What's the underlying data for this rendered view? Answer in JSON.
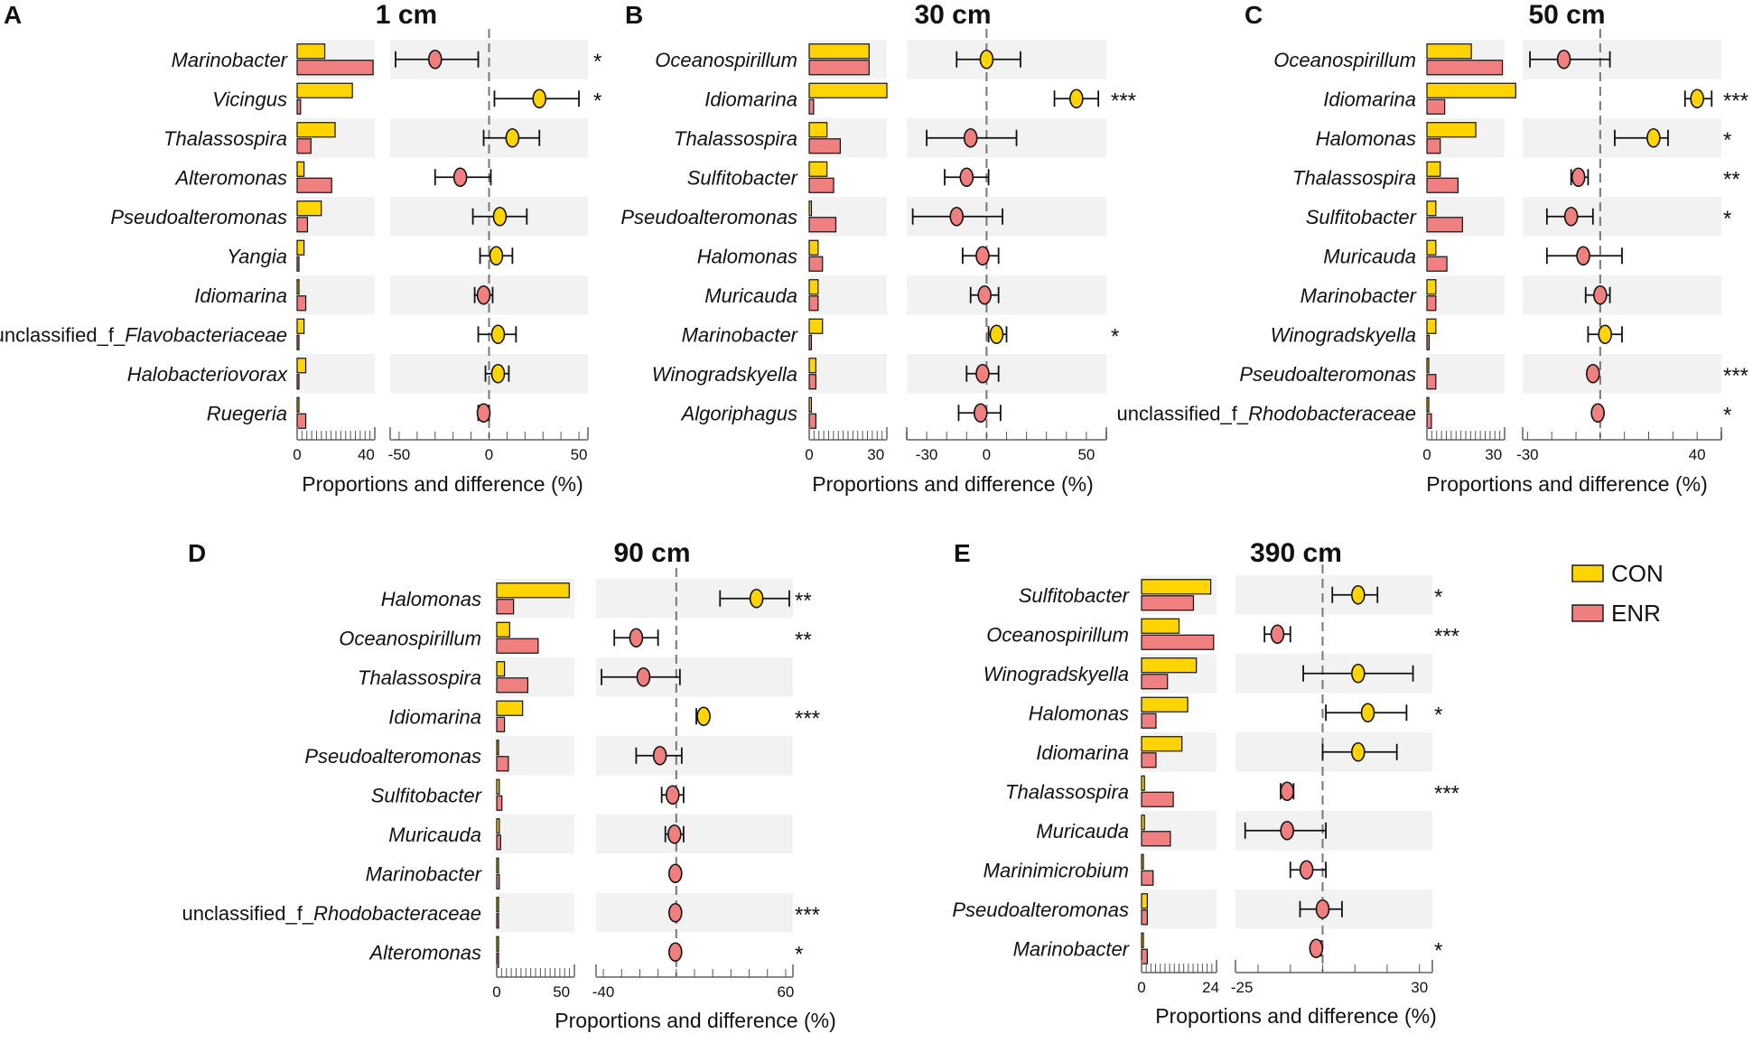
{
  "figure": {
    "colors": {
      "con": "#FFD400",
      "enr": "#F08080",
      "band": "#F2F2F2",
      "axis": "#888888",
      "line": "#111111"
    },
    "legend": [
      {
        "name": "CON",
        "color": "#FFD400"
      },
      {
        "name": "ENR",
        "color": "#F08080"
      }
    ]
  },
  "chart_data": [
    {
      "letter": "A",
      "title": "1 cm",
      "xlabel": "Proportions and difference (%)",
      "prop_lim": [
        0,
        45
      ],
      "prop_ticks": [
        0,
        40
      ],
      "diff_lim": [
        -55,
        55
      ],
      "diff_ticks": [
        -50,
        0,
        50
      ],
      "rows": [
        {
          "name": "Marinobacter",
          "con": 16,
          "enr": 44,
          "diff": -30,
          "lo": -52,
          "hi": -6,
          "group": "ENR",
          "sig": "*"
        },
        {
          "name": "Vicingus",
          "con": 32,
          "enr": 2,
          "diff": 28,
          "lo": 3,
          "hi": 50,
          "group": "CON",
          "sig": "*"
        },
        {
          "name": "Thalassospira",
          "con": 22,
          "enr": 8,
          "diff": 13,
          "lo": -3,
          "hi": 28,
          "group": "CON",
          "sig": ""
        },
        {
          "name": "Alteromonas",
          "con": 4,
          "enr": 20,
          "diff": -16,
          "lo": -30,
          "hi": 1,
          "group": "ENR",
          "sig": ""
        },
        {
          "name": "Pseudoalteromonas",
          "con": 14,
          "enr": 6,
          "diff": 6,
          "lo": -9,
          "hi": 21,
          "group": "CON",
          "sig": ""
        },
        {
          "name": "Yangia",
          "con": 4,
          "enr": 1,
          "diff": 4,
          "lo": -5,
          "hi": 13,
          "group": "CON",
          "sig": ""
        },
        {
          "name": "Idiomarina",
          "con": 1,
          "enr": 5,
          "diff": -3,
          "lo": -8,
          "hi": 2,
          "group": "ENR",
          "sig": ""
        },
        {
          "name": "unclassified_f_Flavobacteriaceae",
          "con": 4,
          "enr": 1,
          "diff": 5,
          "lo": -6,
          "hi": 15,
          "group": "CON",
          "sig": ""
        },
        {
          "name": "Halobacteriovorax",
          "con": 5,
          "enr": 0.5,
          "diff": 5,
          "lo": -2,
          "hi": 11,
          "group": "CON",
          "sig": ""
        },
        {
          "name": "Ruegeria",
          "con": 0.5,
          "enr": 5,
          "diff": -3,
          "lo": -6,
          "hi": 0,
          "group": "ENR",
          "sig": ""
        }
      ]
    },
    {
      "letter": "B",
      "title": "30 cm",
      "xlabel": "Proportions and difference (%)",
      "prop_lim": [
        0,
        35
      ],
      "prop_ticks": [
        0,
        30
      ],
      "diff_lim": [
        -40,
        60
      ],
      "diff_ticks": [
        -30,
        0,
        50
      ],
      "rows": [
        {
          "name": "Oceanospirillum",
          "con": 27,
          "enr": 27,
          "diff": 0,
          "lo": -15,
          "hi": 17,
          "group": "CON",
          "sig": ""
        },
        {
          "name": "Idiomarina",
          "con": 35,
          "enr": 2,
          "diff": 45,
          "lo": 34,
          "hi": 56,
          "group": "CON",
          "sig": "***"
        },
        {
          "name": "Thalassospira",
          "con": 8,
          "enr": 14,
          "diff": -8,
          "lo": -30,
          "hi": 15,
          "group": "ENR",
          "sig": ""
        },
        {
          "name": "Sulfitobacter",
          "con": 8,
          "enr": 11,
          "diff": -10,
          "lo": -21,
          "hi": 1,
          "group": "ENR",
          "sig": ""
        },
        {
          "name": "Pseudoalteromonas",
          "con": 1,
          "enr": 12,
          "diff": -15,
          "lo": -37,
          "hi": 8,
          "group": "ENR",
          "sig": ""
        },
        {
          "name": "Halomonas",
          "con": 4,
          "enr": 6,
          "diff": -2,
          "lo": -12,
          "hi": 6,
          "group": "ENR",
          "sig": ""
        },
        {
          "name": "Muricauda",
          "con": 4,
          "enr": 4,
          "diff": -1,
          "lo": -8,
          "hi": 6,
          "group": "ENR",
          "sig": ""
        },
        {
          "name": "Marinobacter",
          "con": 6,
          "enr": 1,
          "diff": 5,
          "lo": 1,
          "hi": 10,
          "group": "CON",
          "sig": "*"
        },
        {
          "name": "Winogradskyella",
          "con": 3,
          "enr": 3,
          "diff": -2,
          "lo": -10,
          "hi": 6,
          "group": "ENR",
          "sig": ""
        },
        {
          "name": "Algoriphagus",
          "con": 1,
          "enr": 3,
          "diff": -3,
          "lo": -14,
          "hi": 7,
          "group": "ENR",
          "sig": ""
        }
      ]
    },
    {
      "letter": "C",
      "title": "50 cm",
      "xlabel": "Proportions and difference (%)",
      "prop_lim": [
        0,
        35
      ],
      "prop_ticks": [
        0,
        30
      ],
      "diff_lim": [
        -32,
        50
      ],
      "diff_ticks": [
        -30,
        40
      ],
      "rows": [
        {
          "name": "Oceanospirillum",
          "con": 20,
          "enr": 34,
          "diff": -15,
          "lo": -29,
          "hi": 4,
          "group": "ENR",
          "sig": ""
        },
        {
          "name": "Idiomarina",
          "con": 40,
          "enr": 8,
          "diff": 40,
          "lo": 35,
          "hi": 46,
          "group": "CON",
          "sig": "***"
        },
        {
          "name": "Halomonas",
          "con": 22,
          "enr": 6,
          "diff": 22,
          "lo": 6,
          "hi": 28,
          "group": "CON",
          "sig": "*"
        },
        {
          "name": "Thalassospira",
          "con": 6,
          "enr": 14,
          "diff": -9,
          "lo": -12,
          "hi": -5,
          "group": "ENR",
          "sig": "**"
        },
        {
          "name": "Sulfitobacter",
          "con": 4,
          "enr": 16,
          "diff": -12,
          "lo": -22,
          "hi": -3,
          "group": "ENR",
          "sig": "*"
        },
        {
          "name": "Muricauda",
          "con": 4,
          "enr": 9,
          "diff": -7,
          "lo": -22,
          "hi": 9,
          "group": "ENR",
          "sig": ""
        },
        {
          "name": "Marinobacter",
          "con": 4,
          "enr": 4,
          "diff": 0,
          "lo": -6,
          "hi": 4,
          "group": "ENR",
          "sig": ""
        },
        {
          "name": "Winogradskyella",
          "con": 4,
          "enr": 1,
          "diff": 2,
          "lo": -5,
          "hi": 9,
          "group": "CON",
          "sig": ""
        },
        {
          "name": "Pseudoalteromonas",
          "con": 0.5,
          "enr": 4,
          "diff": -3,
          "lo": -4,
          "hi": -2,
          "group": "ENR",
          "sig": "***"
        },
        {
          "name": "unclassified_f_Rhodobacteraceae",
          "con": 0.5,
          "enr": 2,
          "diff": -1,
          "lo": -2,
          "hi": -0.5,
          "group": "ENR",
          "sig": "*"
        }
      ]
    },
    {
      "letter": "D",
      "title": "90 cm",
      "xlabel": "Proportions and difference (%)",
      "prop_lim": [
        0,
        60
      ],
      "prop_ticks": [
        0,
        50
      ],
      "diff_lim": [
        -44,
        64
      ],
      "diff_ticks": [
        -40,
        60
      ],
      "rows": [
        {
          "name": "Halomonas",
          "con": 56,
          "enr": 13,
          "diff": 44,
          "lo": 24,
          "hi": 62,
          "group": "CON",
          "sig": "**"
        },
        {
          "name": "Oceanospirillum",
          "con": 10,
          "enr": 32,
          "diff": -22,
          "lo": -34,
          "hi": -10,
          "group": "ENR",
          "sig": "**"
        },
        {
          "name": "Thalassospira",
          "con": 6,
          "enr": 24,
          "diff": -18,
          "lo": -41,
          "hi": 2,
          "group": "ENR",
          "sig": ""
        },
        {
          "name": "Idiomarina",
          "con": 20,
          "enr": 6,
          "diff": 15,
          "lo": 11,
          "hi": 17,
          "group": "CON",
          "sig": "***"
        },
        {
          "name": "Pseudoalteromonas",
          "con": 1,
          "enr": 9,
          "diff": -9,
          "lo": -22,
          "hi": 3,
          "group": "ENR",
          "sig": ""
        },
        {
          "name": "Sulfitobacter",
          "con": 2,
          "enr": 4,
          "diff": -2,
          "lo": -8,
          "hi": 4,
          "group": "ENR",
          "sig": ""
        },
        {
          "name": "Muricauda",
          "con": 2,
          "enr": 3,
          "diff": -1,
          "lo": -6,
          "hi": 4,
          "group": "ENR",
          "sig": ""
        },
        {
          "name": "Marinobacter",
          "con": 1,
          "enr": 2,
          "diff": -0.5,
          "lo": -2,
          "hi": 1,
          "group": "ENR",
          "sig": ""
        },
        {
          "name": "unclassified_f_Rhodobacteraceae",
          "con": 0.5,
          "enr": 1,
          "diff": -0.5,
          "lo": -2,
          "hi": 0.5,
          "group": "ENR",
          "sig": "***"
        },
        {
          "name": "Alteromonas",
          "con": 0.5,
          "enr": 1,
          "diff": -0.5,
          "lo": -2,
          "hi": 0.5,
          "group": "ENR",
          "sig": "*"
        }
      ]
    },
    {
      "letter": "E",
      "title": "390 cm",
      "xlabel": "Proportions and difference (%)",
      "prop_lim": [
        0,
        26
      ],
      "prop_ticks": [
        0,
        24
      ],
      "diff_lim": [
        -27,
        34
      ],
      "diff_ticks": [
        -25,
        30
      ],
      "rows": [
        {
          "name": "Sulfitobacter",
          "con": 24,
          "enr": 18,
          "diff": 11,
          "lo": 3,
          "hi": 17,
          "group": "CON",
          "sig": "*"
        },
        {
          "name": "Oceanospirillum",
          "con": 13,
          "enr": 25,
          "diff": -14,
          "lo": -18,
          "hi": -10,
          "group": "ENR",
          "sig": "***"
        },
        {
          "name": "Winogradskyella",
          "con": 19,
          "enr": 9,
          "diff": 11,
          "lo": -6,
          "hi": 28,
          "group": "CON",
          "sig": ""
        },
        {
          "name": "Halomonas",
          "con": 16,
          "enr": 5,
          "diff": 14,
          "lo": 1,
          "hi": 26,
          "group": "CON",
          "sig": "*"
        },
        {
          "name": "Idiomarina",
          "con": 14,
          "enr": 5,
          "diff": 11,
          "lo": 0,
          "hi": 23,
          "group": "CON",
          "sig": ""
        },
        {
          "name": "Thalassospira",
          "con": 1,
          "enr": 11,
          "diff": -11,
          "lo": -13,
          "hi": -9,
          "group": "ENR",
          "sig": "***"
        },
        {
          "name": "Muricauda",
          "con": 1,
          "enr": 10,
          "diff": -11,
          "lo": -24,
          "hi": 1,
          "group": "ENR",
          "sig": ""
        },
        {
          "name": "Marinimicrobium",
          "con": 0.5,
          "enr": 4,
          "diff": -5,
          "lo": -10,
          "hi": 1,
          "group": "ENR",
          "sig": ""
        },
        {
          "name": "Pseudoalteromonas",
          "con": 2,
          "enr": 2,
          "diff": 0,
          "lo": -7,
          "hi": 6,
          "group": "ENR",
          "sig": ""
        },
        {
          "name": "Marinobacter",
          "con": 0.5,
          "enr": 2,
          "diff": -2,
          "lo": -3,
          "hi": -0.5,
          "group": "ENR",
          "sig": "*"
        }
      ]
    }
  ]
}
